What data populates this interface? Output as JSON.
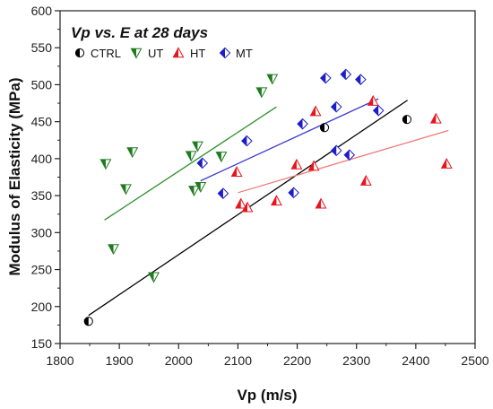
{
  "chart_data": {
    "type": "scatter",
    "title": "Vp vs. E at 28 days",
    "xlabel": "Vp (m/s)",
    "ylabel": "Modulus of Elasticity (MPa)",
    "xlim": [
      1800,
      2500
    ],
    "ylim": [
      150,
      600
    ],
    "xticks": [
      1800,
      1900,
      2000,
      2100,
      2200,
      2300,
      2400,
      2500
    ],
    "yticks": [
      150,
      200,
      250,
      300,
      350,
      400,
      450,
      500,
      550,
      600
    ],
    "grid": false,
    "legend_position": "top-left",
    "series": [
      {
        "name": "CTRL",
        "marker": "circle",
        "color": "#000000",
        "line_color": "#000000",
        "x": [
          1848,
          2246,
          2385
        ],
        "y": [
          180,
          442,
          453
        ],
        "fit_line": {
          "x": [
            1848,
            2386
          ],
          "y": [
            188,
            479
          ]
        }
      },
      {
        "name": "UT",
        "marker": "triangle-down",
        "color": "#1e7b1e",
        "line_color": "#2b8f2b",
        "x": [
          1877,
          1890,
          1911,
          1922,
          1958,
          2021,
          2026,
          2032,
          2037,
          2072,
          2140,
          2158
        ],
        "y": [
          393,
          278,
          359,
          409,
          240,
          404,
          357,
          417,
          362,
          403,
          490,
          508
        ],
        "fit_line": {
          "x": [
            1875,
            2165
          ],
          "y": [
            317,
            470
          ]
        }
      },
      {
        "name": "HT",
        "marker": "triangle-up",
        "color": "#e8141c",
        "line_color": "#f07a7a",
        "x": [
          2098,
          2105,
          2116,
          2165,
          2199,
          2228,
          2231,
          2240,
          2316,
          2328,
          2434,
          2452
        ],
        "y": [
          382,
          339,
          334,
          343,
          392,
          390,
          464,
          339,
          370,
          478,
          454,
          393
        ],
        "fit_line": {
          "x": [
            2100,
            2455
          ],
          "y": [
            354,
            438
          ]
        }
      },
      {
        "name": "MT",
        "marker": "diamond",
        "color": "#1c1cc8",
        "line_color": "#3a3ad2",
        "x": [
          2040,
          2075,
          2115,
          2194,
          2209,
          2248,
          2266,
          2266,
          2282,
          2288,
          2307,
          2337
        ],
        "y": [
          394,
          353,
          424,
          354,
          447,
          509,
          470,
          411,
          514,
          405,
          507,
          465
        ],
        "fit_line": {
          "x": [
            2037,
            2337
          ],
          "y": [
            370,
            481
          ]
        }
      }
    ]
  }
}
